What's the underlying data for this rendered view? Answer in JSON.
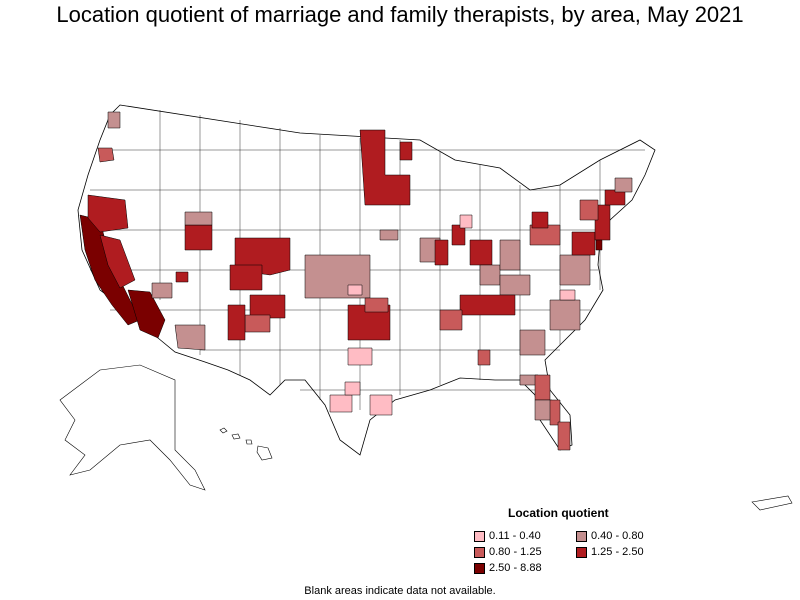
{
  "title": "Location quotient of marriage and family therapists, by area, May 2021",
  "legend": {
    "title": "Location quotient",
    "items": [
      {
        "label": "0.11 - 0.40",
        "color": "#ffbcc4"
      },
      {
        "label": "0.40 - 0.80",
        "color": "#c49090"
      },
      {
        "label": "0.80 - 1.25",
        "color": "#c85a5a"
      },
      {
        "label": "1.25 - 2.50",
        "color": "#b01c20"
      },
      {
        "label": "2.50 - 8.88",
        "color": "#7a0000"
      }
    ]
  },
  "footnote": "Blank areas indicate data not available."
}
